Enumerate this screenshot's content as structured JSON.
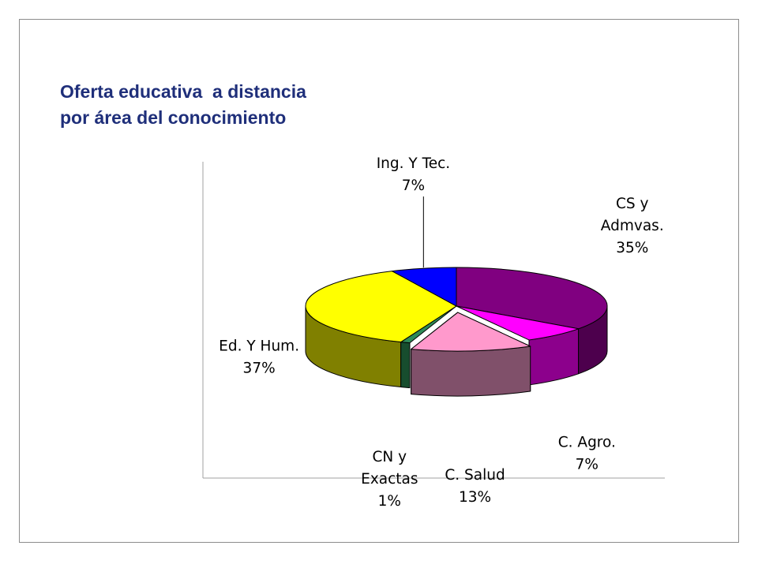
{
  "title_lines": [
    "Oferta educativa  a distancia",
    "por área del conocimiento"
  ],
  "chart_data": {
    "type": "pie",
    "style": "3d-exploded",
    "title": "Oferta educativa  a distancia por área del conocimiento",
    "start": "12 o'clock",
    "direction": "clockwise",
    "grid": false,
    "legend": "none",
    "data_labels": "category and percent",
    "slices": [
      {
        "label_lines": [
          "CS y",
          "Admvas."
        ],
        "label": "CS y Admvas.",
        "value": 35,
        "pct_label": "35%",
        "top": "#800080",
        "side": "#4d004d",
        "exploded": false
      },
      {
        "label_lines": [
          "C. Agro."
        ],
        "label": "C. Agro.",
        "value": 7,
        "pct_label": "7%",
        "top": "#ff00ff",
        "side": "#8c008c",
        "exploded": false
      },
      {
        "label_lines": [
          "C. Salud"
        ],
        "label": "C. Salud",
        "value": 13,
        "pct_label": "13%",
        "top": "#ff99cc",
        "side": "#80506a",
        "exploded": true
      },
      {
        "label_lines": [
          "CN y",
          "Exactas"
        ],
        "label": "CN y Exactas",
        "value": 1,
        "pct_label": "1%",
        "top": "#2e8b57",
        "side": "#174d2e",
        "exploded": false
      },
      {
        "label_lines": [
          "Ed. Y Hum."
        ],
        "label": "Ed. Y Hum.",
        "value": 37,
        "pct_label": "37%",
        "top": "#ffff00",
        "side": "#808000",
        "exploded": false
      },
      {
        "label_lines": [
          "Ing. Y Tec."
        ],
        "label": "Ing. Y Tec.",
        "value": 7,
        "pct_label": "7%",
        "top": "#0000ff",
        "side": "#00007a",
        "exploded": false
      }
    ]
  }
}
